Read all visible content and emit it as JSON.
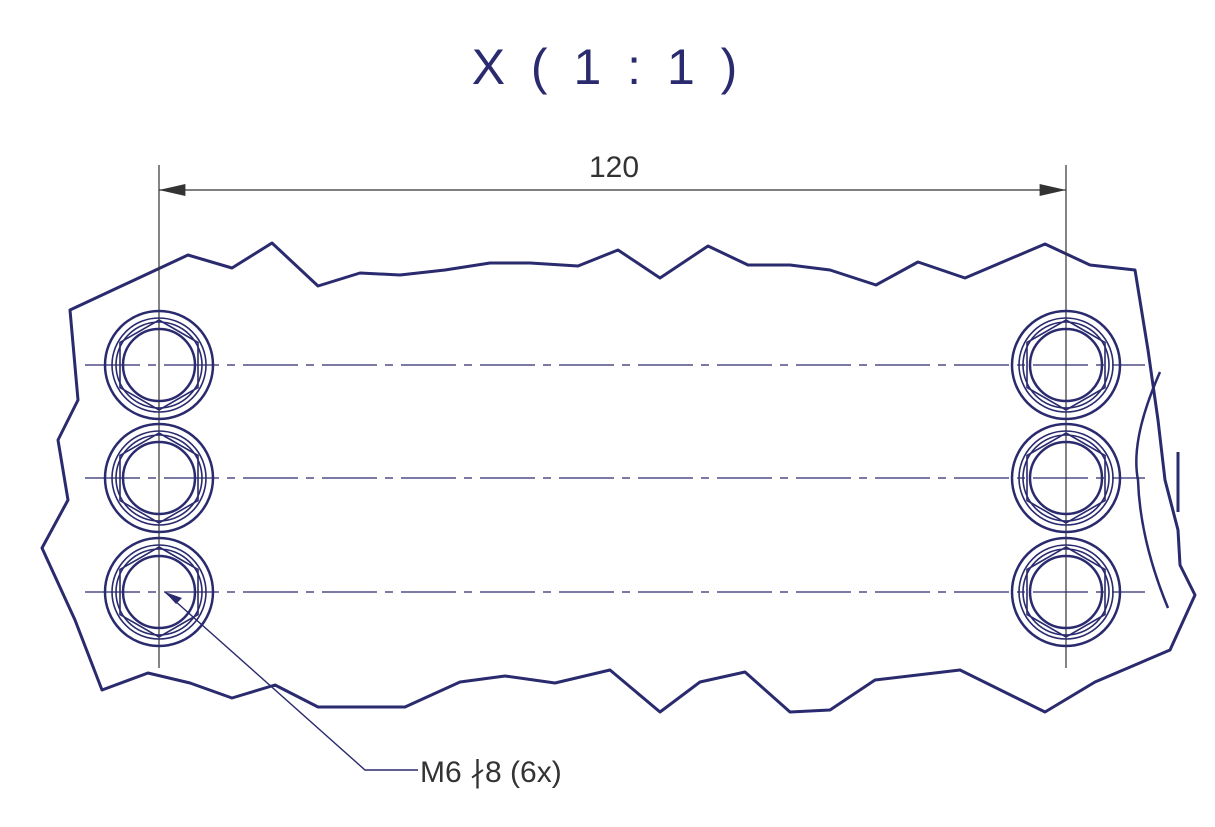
{
  "view": {
    "title": "X ( 1 : 1 )"
  },
  "dimension": {
    "label": "120"
  },
  "callout": {
    "label": "M6 ↧ 8 (6x)",
    "label_display": "M6 ∤8 (6x)"
  },
  "holes": {
    "count": 6,
    "rows": 3,
    "columns": 2
  },
  "colors": {
    "outline": "#2a2a6e",
    "dimension": "#333333",
    "centerline": "#2a2a6e"
  }
}
